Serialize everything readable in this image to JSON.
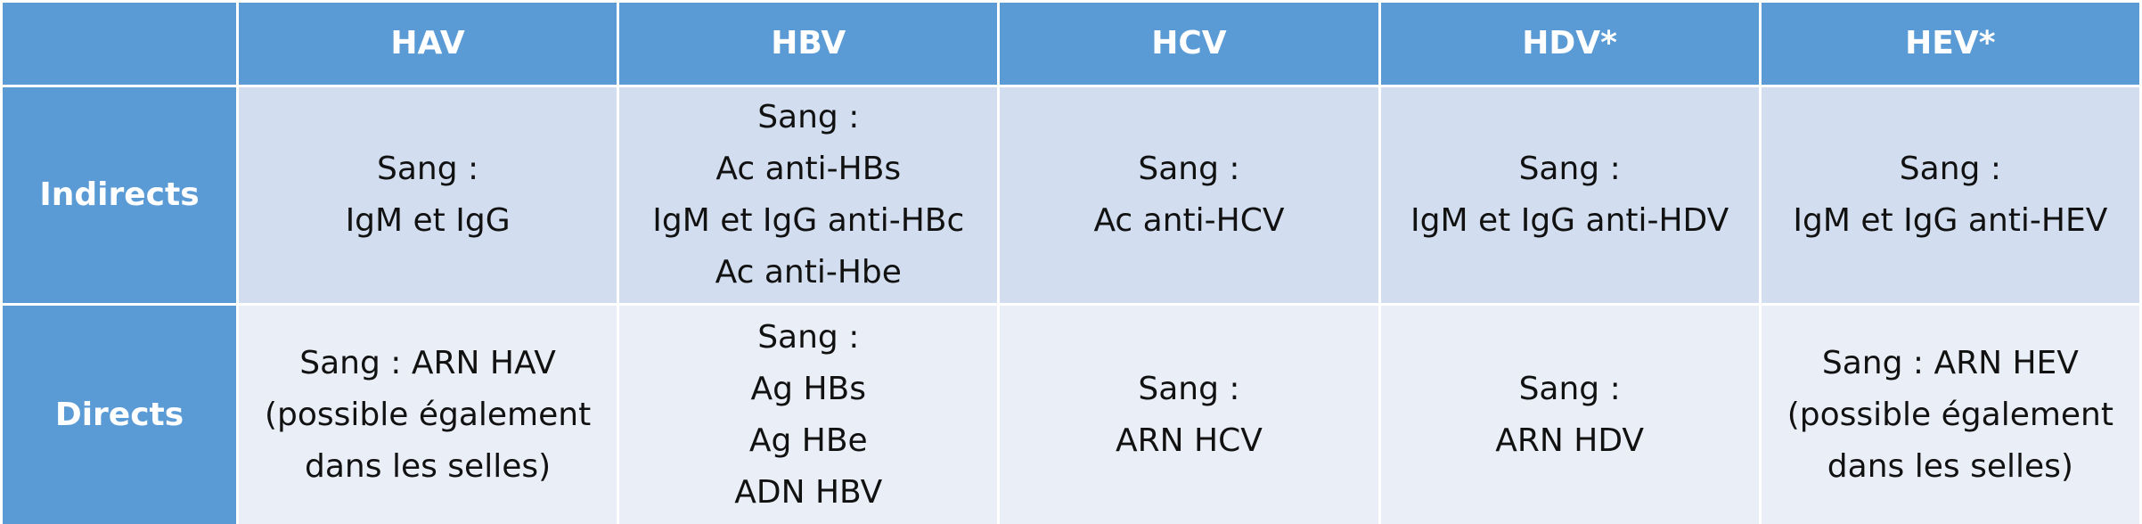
{
  "table": {
    "columns": [
      "HAV",
      "HBV",
      "HCV",
      "HDV*",
      "HEV*"
    ],
    "rows": [
      {
        "label": "Indirects",
        "cells": [
          [
            "Sang :",
            "IgM et IgG"
          ],
          [
            "Sang :",
            "Ac anti-HBs",
            "IgM et IgG anti-HBc",
            "Ac anti-Hbe"
          ],
          [
            "Sang :",
            "Ac anti-HCV"
          ],
          [
            "Sang :",
            "IgM et IgG anti-HDV"
          ],
          [
            "Sang :",
            "IgM et IgG anti-HEV"
          ]
        ]
      },
      {
        "label": "Directs",
        "cells": [
          [
            "Sang : ARN HAV",
            "(possible également",
            "dans les selles)"
          ],
          [
            "Sang :",
            "Ag HBs",
            "Ag HBe",
            "ADN HBV"
          ],
          [
            "Sang :",
            "ARN HCV"
          ],
          [
            "Sang :",
            "ARN HDV"
          ],
          [
            "Sang : ARN HEV",
            "(possible également",
            "dans les selles)"
          ]
        ]
      }
    ]
  }
}
